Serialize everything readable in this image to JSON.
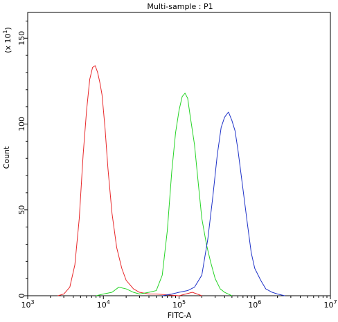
{
  "chart_data": {
    "type": "line",
    "title": "Multi-sample : P1",
    "xlabel": "FITC-A",
    "ylabel": "Count",
    "y_multiplier": {
      "base": "(x 10",
      "exp": "1",
      "close": ")"
    },
    "x_scale": "log",
    "xlim": [
      1000,
      10000000
    ],
    "ylim": [
      0,
      165
    ],
    "x_ticks": [
      {
        "value": 1000,
        "base": "10",
        "exp": "3"
      },
      {
        "value": 10000,
        "base": "10",
        "exp": "4"
      },
      {
        "value": 100000,
        "base": "10",
        "exp": "5"
      },
      {
        "value": 1000000,
        "base": "10",
        "exp": "6"
      },
      {
        "value": 10000000,
        "base": "10",
        "exp": "7"
      }
    ],
    "y_ticks": [
      0,
      50,
      100,
      150
    ],
    "legend": "none",
    "grid": false,
    "series": [
      {
        "color": "#e8282a",
        "points": [
          [
            2500,
            0
          ],
          [
            3000,
            1
          ],
          [
            3600,
            5
          ],
          [
            4200,
            18
          ],
          [
            4800,
            45
          ],
          [
            5400,
            82
          ],
          [
            6000,
            108
          ],
          [
            6600,
            126
          ],
          [
            7200,
            133
          ],
          [
            7800,
            134
          ],
          [
            8400,
            130
          ],
          [
            9000,
            124
          ],
          [
            9600,
            117
          ],
          [
            10500,
            98
          ],
          [
            11500,
            74
          ],
          [
            13000,
            48
          ],
          [
            15000,
            28
          ],
          [
            17500,
            16
          ],
          [
            20000,
            9
          ],
          [
            25000,
            4
          ],
          [
            30000,
            2
          ],
          [
            40000,
            1
          ],
          [
            50000,
            1
          ],
          [
            100000,
            0
          ],
          [
            150000,
            2
          ],
          [
            200000,
            0
          ]
        ]
      },
      {
        "color": "#26d426",
        "points": [
          [
            8000,
            0
          ],
          [
            10000,
            1
          ],
          [
            13000,
            2
          ],
          [
            16000,
            5
          ],
          [
            20000,
            4
          ],
          [
            25000,
            2
          ],
          [
            30000,
            1
          ],
          [
            40000,
            2
          ],
          [
            50000,
            3
          ],
          [
            60000,
            12
          ],
          [
            70000,
            38
          ],
          [
            80000,
            72
          ],
          [
            90000,
            95
          ],
          [
            100000,
            108
          ],
          [
            110000,
            116
          ],
          [
            120000,
            118
          ],
          [
            130000,
            115
          ],
          [
            140000,
            105
          ],
          [
            160000,
            88
          ],
          [
            180000,
            65
          ],
          [
            200000,
            45
          ],
          [
            230000,
            30
          ],
          [
            260000,
            20
          ],
          [
            300000,
            10
          ],
          [
            350000,
            4
          ],
          [
            400000,
            2
          ],
          [
            500000,
            0
          ]
        ]
      },
      {
        "color": "#1e32c8",
        "points": [
          [
            60000,
            0
          ],
          [
            80000,
            1
          ],
          [
            100000,
            2
          ],
          [
            130000,
            3
          ],
          [
            160000,
            5
          ],
          [
            200000,
            12
          ],
          [
            240000,
            33
          ],
          [
            280000,
            58
          ],
          [
            320000,
            82
          ],
          [
            360000,
            98
          ],
          [
            400000,
            104
          ],
          [
            450000,
            107
          ],
          [
            500000,
            102
          ],
          [
            550000,
            96
          ],
          [
            600000,
            85
          ],
          [
            700000,
            62
          ],
          [
            800000,
            42
          ],
          [
            900000,
            25
          ],
          [
            1000000,
            16
          ],
          [
            1200000,
            9
          ],
          [
            1400000,
            4
          ],
          [
            1700000,
            2
          ],
          [
            2000000,
            1
          ],
          [
            2500000,
            0
          ]
        ]
      }
    ]
  }
}
